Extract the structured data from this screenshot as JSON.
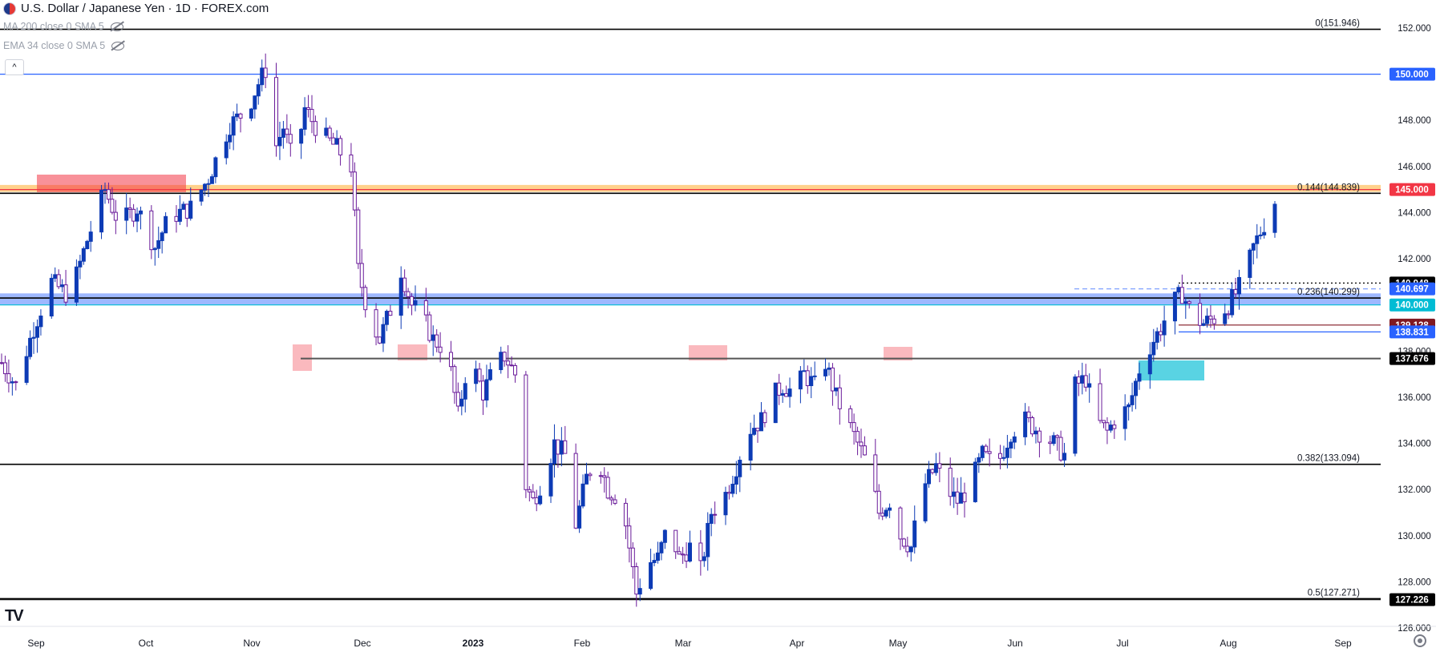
{
  "header": {
    "title": "U.S. Dollar / Japanese Yen · 1D · FOREX.com",
    "indicator1": "MA 200 close 0 SMA 5",
    "indicator2": "EMA 34 close 0 SMA 5",
    "collapse_glyph": "^",
    "logo": "TV"
  },
  "chart_data": {
    "type": "candlestick",
    "title": "U.S. Dollar / Japanese Yen",
    "symbol": "USDJPY",
    "timeframe": "1D",
    "source": "FOREX.com",
    "ylim": [
      125.2,
      152.6
    ],
    "y_ticks": [
      "126.000",
      "128.000",
      "130.000",
      "132.000",
      "134.000",
      "136.000",
      "138.000",
      "140.000",
      "142.000",
      "144.000",
      "146.000",
      "148.000",
      "150.000",
      "152.000"
    ],
    "x_ticks": [
      "Sep",
      "Oct",
      "Nov",
      "Dec",
      "2023",
      "Feb",
      "Mar",
      "Apr",
      "May",
      "Jun",
      "Jul",
      "Aug",
      "Sep"
    ],
    "date_range": [
      "2022-08-22",
      "2023-08-14"
    ],
    "price_path": [
      [
        0,
        137.5
      ],
      [
        4,
        136.5
      ],
      [
        9,
        139
      ],
      [
        14,
        141
      ],
      [
        18,
        140.5
      ],
      [
        21,
        141.3
      ],
      [
        24,
        142.8
      ],
      [
        29,
        145
      ],
      [
        33,
        143.5
      ],
      [
        38,
        144.2
      ],
      [
        43,
        142.5
      ],
      [
        47,
        143.8
      ],
      [
        53,
        144.2
      ],
      [
        58,
        145.5
      ],
      [
        64,
        147.8
      ],
      [
        69,
        148.5
      ],
      [
        72,
        149.6
      ],
      [
        74,
        150.2
      ],
      [
        76,
        146.5
      ],
      [
        79,
        147.7
      ],
      [
        82,
        146
      ],
      [
        85,
        148.5
      ],
      [
        89,
        147.5
      ],
      [
        94,
        146.8
      ],
      [
        98,
        146
      ],
      [
        100,
        141.5
      ],
      [
        103,
        139.5
      ],
      [
        106,
        138.5
      ],
      [
        109,
        139.8
      ],
      [
        112,
        141.5
      ],
      [
        115,
        140
      ],
      [
        118,
        139.5
      ],
      [
        121,
        138.5
      ],
      [
        125,
        138
      ],
      [
        128,
        135.2
      ],
      [
        131,
        137.8
      ],
      [
        135,
        136.2
      ],
      [
        138,
        137.2
      ],
      [
        141,
        137.8
      ],
      [
        144,
        137
      ],
      [
        146,
        132.5
      ],
      [
        149,
        131.5
      ],
      [
        152,
        132.5
      ],
      [
        155,
        134
      ],
      [
        158,
        133.5
      ],
      [
        161,
        130.5
      ],
      [
        164,
        132.5
      ],
      [
        167,
        133.5
      ],
      [
        170,
        132
      ],
      [
        174,
        131.5
      ],
      [
        178,
        127.5
      ],
      [
        181,
        128.8
      ],
      [
        184,
        129
      ],
      [
        187,
        130.5
      ],
      [
        190,
        129
      ],
      [
        193,
        129.5
      ],
      [
        196,
        128.5
      ],
      [
        199,
        131
      ],
      [
        203,
        131.8
      ],
      [
        206,
        133
      ],
      [
        209,
        134.5
      ],
      [
        213,
        135
      ],
      [
        216,
        136
      ],
      [
        219,
        136.5
      ],
      [
        222,
        136.2
      ],
      [
        225,
        137
      ],
      [
        228,
        136.5
      ],
      [
        231,
        137.5
      ],
      [
        234,
        136
      ],
      [
        237,
        135
      ],
      [
        240,
        134
      ],
      [
        243,
        133
      ],
      [
        246,
        131
      ],
      [
        249,
        131.5
      ],
      [
        252,
        130
      ],
      [
        255,
        129.5
      ],
      [
        258,
        132
      ],
      [
        262,
        133
      ],
      [
        265,
        132
      ],
      [
        268,
        131.5
      ],
      [
        271,
        132
      ],
      [
        275,
        133.5
      ],
      [
        279,
        133
      ],
      [
        283,
        134.5
      ],
      [
        287,
        135
      ],
      [
        291,
        134.5
      ],
      [
        295,
        134
      ],
      [
        298,
        133.5
      ],
      [
        301,
        136.5
      ],
      [
        304,
        136.8
      ],
      [
        307,
        135
      ],
      [
        310,
        134.5
      ],
      [
        313,
        135.2
      ],
      [
        316,
        135.5
      ],
      [
        319,
        137.2
      ],
      [
        322,
        138.2
      ],
      [
        325,
        139
      ],
      [
        328,
        140
      ],
      [
        331,
        140.5
      ],
      [
        334,
        139.5
      ],
      [
        337,
        139.2
      ],
      [
        341,
        139.5
      ],
      [
        344,
        140
      ],
      [
        348,
        141
      ],
      [
        351,
        142.5
      ],
      [
        354,
        143.5
      ],
      [
        357,
        144.5
      ],
      [
        360,
        144.2
      ],
      [
        363,
        144.5
      ],
      [
        366,
        144.5
      ],
      [
        368,
        143.5
      ],
      [
        371,
        142
      ],
      [
        373,
        139.5
      ],
      [
        375,
        138.5
      ],
      [
        377,
        138
      ],
      [
        380,
        139
      ],
      [
        382,
        140.5
      ],
      [
        384,
        141.5
      ],
      [
        386,
        141
      ],
      [
        388,
        140.5
      ],
      [
        390,
        139.5
      ],
      [
        392,
        141
      ],
      [
        395,
        142.5
      ],
      [
        398,
        142
      ],
      [
        401,
        141.5
      ],
      [
        404,
        143
      ],
      [
        407,
        145
      ],
      [
        409,
        145.5
      ]
    ],
    "levels": [
      {
        "label": "0(151.946)",
        "price": 151.946,
        "style": "fib",
        "color": "#000000"
      },
      {
        "label": "150.000",
        "price": 150.0,
        "style": "level",
        "color": "#2962ff"
      },
      {
        "label": "0.144(144.839)",
        "price": 144.839,
        "style": "fib",
        "color": "#000000"
      },
      {
        "label": "145.000",
        "price": 145.0,
        "style": "level",
        "color": "#f23645"
      },
      {
        "label": "140.948",
        "price": 140.948,
        "style": "dotted",
        "color": "#000000"
      },
      {
        "label": "0.236(140.299)",
        "price": 140.299,
        "style": "fib",
        "color": "#000000"
      },
      {
        "label": "140.697",
        "price": 140.697,
        "style": "dashed",
        "color": "#2962ff"
      },
      {
        "label": "140.000",
        "price": 140.0,
        "style": "level",
        "color": "#00bcd4"
      },
      {
        "label": "139.128",
        "price": 139.128,
        "style": "level",
        "color": "#801922"
      },
      {
        "label": "138.831",
        "price": 138.831,
        "style": "level",
        "color": "#2962ff"
      },
      {
        "label": "137.676",
        "price": 137.676,
        "style": "level",
        "color": "#000000"
      },
      {
        "label": "0.382(133.094)",
        "price": 133.094,
        "style": "fib",
        "color": "#000000"
      },
      {
        "label": "0.5(127.271)",
        "price": 127.271,
        "style": "fib",
        "color": "#000000"
      },
      {
        "label": "127.226",
        "price": 127.226,
        "style": "level",
        "color": "#000000"
      }
    ],
    "price_tags": [
      {
        "text": "150.000",
        "price": 150.0,
        "bg": "#2962ff",
        "fg": "#ffffff"
      },
      {
        "text": "145.000",
        "price": 145.0,
        "bg": "#f23645",
        "fg": "#ffffff"
      },
      {
        "text": "140.948",
        "price": 140.948,
        "bg": "#000000",
        "fg": "#ffffff"
      },
      {
        "text": "140.697",
        "price": 140.697,
        "bg": "#2962ff",
        "fg": "#ffffff"
      },
      {
        "text": "140.000",
        "price": 140.0,
        "bg": "#00bcd4",
        "fg": "#ffffff"
      },
      {
        "text": "139.128",
        "price": 139.128,
        "bg": "#801922",
        "fg": "#ffffff"
      },
      {
        "text": "138.831",
        "price": 138.831,
        "bg": "#2962ff",
        "fg": "#ffffff"
      },
      {
        "text": "137.676",
        "price": 137.676,
        "bg": "#000000",
        "fg": "#ffffff"
      },
      {
        "text": "127.226",
        "price": 127.226,
        "bg": "#000000",
        "fg": "#ffffff"
      }
    ],
    "zones": [
      {
        "name": "support-zone",
        "price_top": 140.5,
        "price_bottom": 140.0,
        "color": "#2962ff"
      },
      {
        "name": "resistance-zone",
        "price_top": 145.2,
        "price_bottom": 144.9,
        "color": "#ff9800"
      }
    ],
    "colors": {
      "up_candle": "#0d3bb5",
      "down_candle": "#6a1b9a",
      "axis_text": "#131722",
      "highlight_red": "#f23645",
      "highlight_cyan": "#00bcd4"
    }
  }
}
